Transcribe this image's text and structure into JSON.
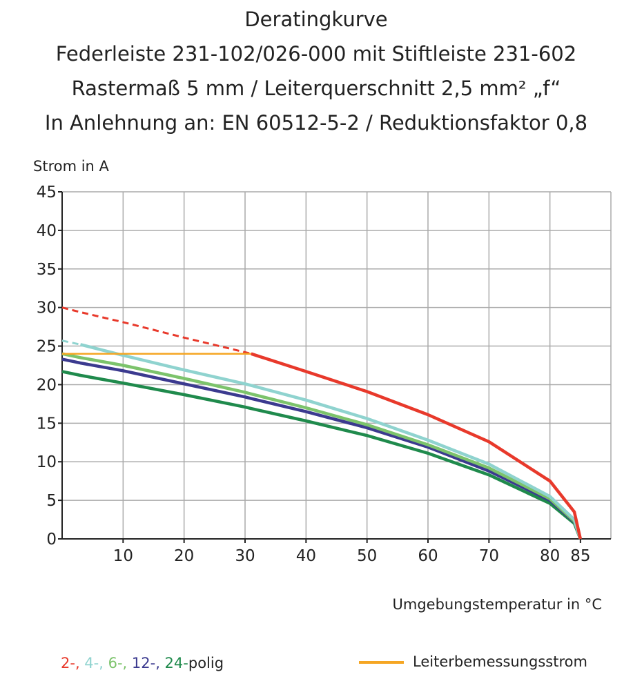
{
  "chart_data": {
    "type": "line",
    "title": [
      "Deratingkurve",
      "Federleiste 231-102/026-000 mit Stiftleiste 231-602",
      "Rastermaß 5 mm / Leiterquerschnitt 2,5 mm² „f“",
      "In Anlehnung an: EN 60512-5-2 / Reduktionsfaktor 0,8"
    ],
    "y_label": "Strom in A",
    "x_label": "Umgebungstemperatur in °C",
    "legend_suffix": "polig",
    "x": [
      0,
      3,
      10,
      20,
      30,
      31,
      40,
      50,
      60,
      70,
      80,
      84,
      85
    ],
    "xlim": [
      0,
      90
    ],
    "xticks": [
      10,
      20,
      30,
      40,
      50,
      60,
      70,
      80,
      85
    ],
    "ylim": [
      0,
      45
    ],
    "yticks": [
      0,
      5,
      10,
      15,
      20,
      25,
      30,
      35,
      40,
      45
    ],
    "grid": true,
    "series": [
      {
        "name": "24-",
        "color": "#1f8a4c",
        "values": [
          21.7,
          21.2,
          20.2,
          18.7,
          17.1,
          16.9,
          15.3,
          13.4,
          11.1,
          8.3,
          4.6,
          2.0,
          0
        ]
      },
      {
        "name": "12-,",
        "color": "#3b3a8f",
        "values": [
          23.3,
          22.8,
          21.8,
          20.1,
          18.4,
          18.2,
          16.5,
          14.4,
          11.9,
          8.8,
          5.0,
          2.2,
          0
        ]
      },
      {
        "name": "6-,",
        "color": "#7cc36b",
        "values": [
          24,
          23.5,
          22.5,
          20.8,
          19,
          18.8,
          17,
          14.8,
          12.2,
          9.2,
          5.2,
          2.3,
          0
        ]
      },
      {
        "name": "4-,",
        "color": "#8fd3cf",
        "values": [
          null,
          25.2,
          23.8,
          21.9,
          20.1,
          19.9,
          18,
          15.6,
          12.8,
          9.7,
          5.5,
          2.5,
          0
        ],
        "dashed_values": [
          25.7,
          25.2,
          null,
          null,
          null,
          null,
          null,
          null,
          null,
          null,
          null,
          null,
          null
        ]
      },
      {
        "name": "2-,",
        "color": "#e8392b",
        "values": [
          null,
          null,
          null,
          null,
          null,
          24,
          21.7,
          19.1,
          16.1,
          12.6,
          7.5,
          3.5,
          0
        ],
        "dashed_values": [
          30,
          29.4,
          28.1,
          26.1,
          24.2,
          24,
          null,
          null,
          null,
          null,
          null,
          null,
          null
        ]
      },
      {
        "name": "Leiterbemessungsstrom",
        "color": "#f5a623",
        "values": [
          24,
          24,
          24,
          24,
          24,
          24,
          null,
          null,
          null,
          null,
          null,
          null,
          null
        ]
      }
    ]
  }
}
